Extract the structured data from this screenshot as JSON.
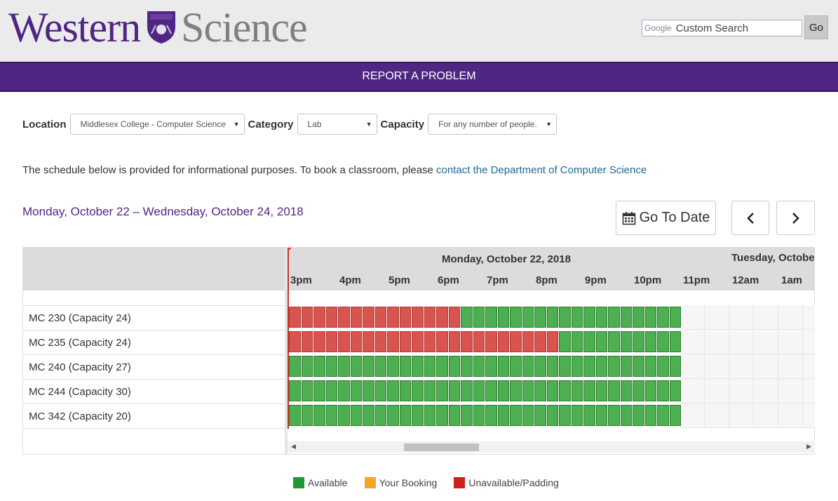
{
  "header": {
    "logo_word1": "Western",
    "logo_word2": "Science",
    "search": {
      "google_label": "Google",
      "placeholder": "Custom Search",
      "button": "Go"
    }
  },
  "nav": {
    "report": "REPORT A PROBLEM"
  },
  "filters": {
    "location": {
      "label": "Location",
      "value": "Middlesex College - Computer Science"
    },
    "category": {
      "label": "Category",
      "value": "Lab"
    },
    "capacity": {
      "label": "Capacity",
      "value": "For any number of people."
    }
  },
  "info": {
    "text": "The schedule below is provided for informational purposes.  To book a classroom, please ",
    "link": "contact the Department of Computer Science"
  },
  "date_range": "Monday, October 22 – Wednesday, October 24, 2018",
  "buttons": {
    "go_to_date": "Go To Date"
  },
  "schedule": {
    "days": [
      "Monday, October 22, 2018",
      "Tuesday, Octobe"
    ],
    "hours": [
      "3pm",
      "4pm",
      "5pm",
      "6pm",
      "7pm",
      "8pm",
      "9pm",
      "10pm",
      "11pm",
      "12am",
      "1am"
    ],
    "rooms": [
      {
        "name": "MC 230 (Capacity 24)",
        "unavailable_slots": 14,
        "available_slots": 18
      },
      {
        "name": "MC 235 (Capacity 24)",
        "unavailable_slots": 22,
        "available_slots": 10
      },
      {
        "name": "MC 240 (Capacity 27)",
        "unavailable_slots": 0,
        "available_slots": 32
      },
      {
        "name": "MC 244 (Capacity 30)",
        "unavailable_slots": 0,
        "available_slots": 32
      },
      {
        "name": "MC 342 (Capacity 20)",
        "unavailable_slots": 0,
        "available_slots": 32
      }
    ]
  },
  "legend": [
    {
      "label": "Available",
      "color": "#1e9a33"
    },
    {
      "label": "Your Booking",
      "color": "#f5a623"
    },
    {
      "label": "Unavailable/Padding",
      "color": "#d0211c"
    }
  ]
}
